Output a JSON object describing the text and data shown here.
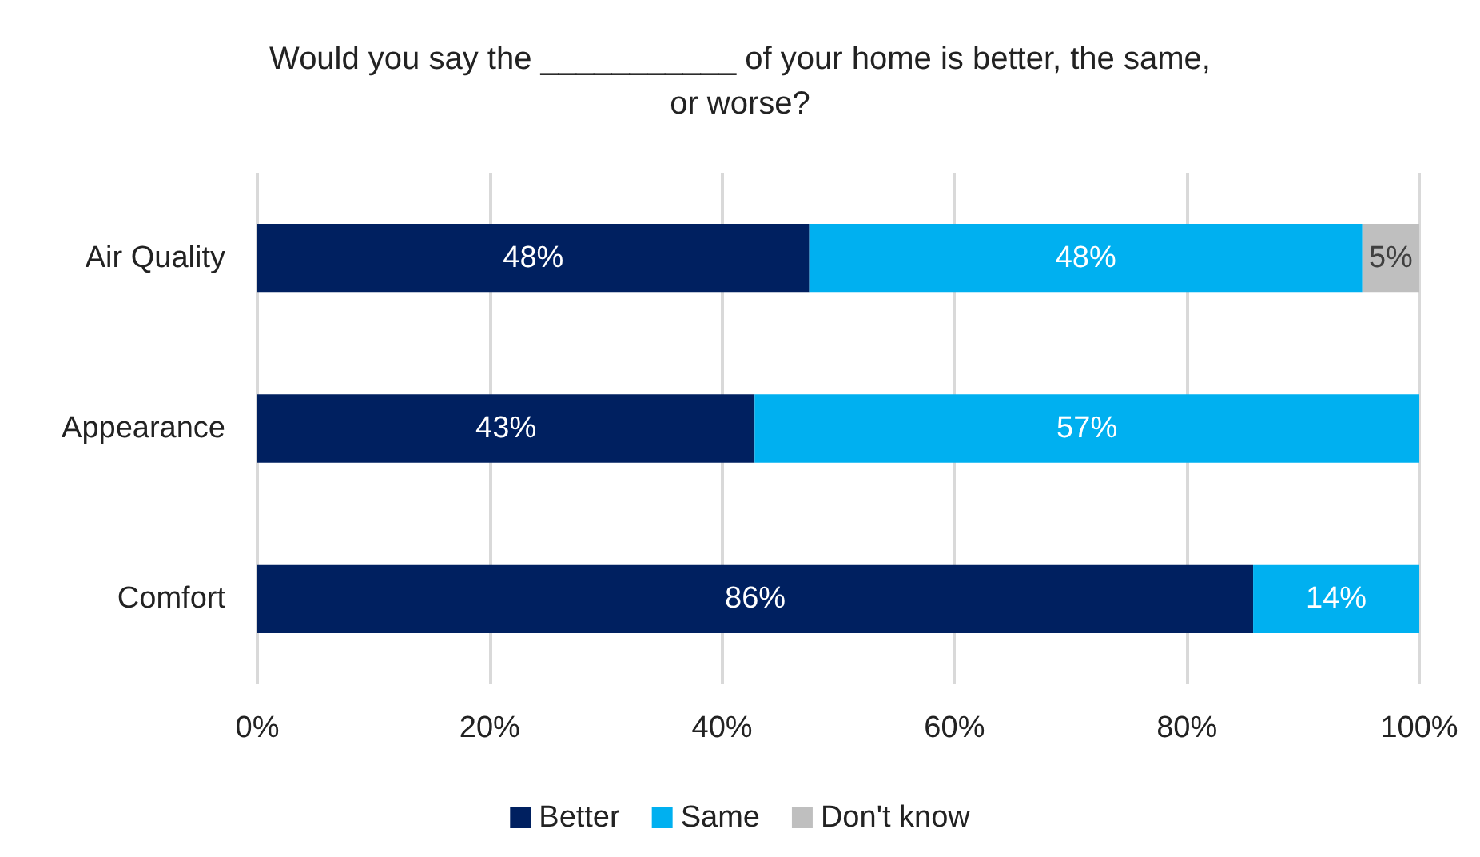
{
  "chart_data": {
    "type": "bar",
    "orientation": "horizontal",
    "stacked": true,
    "title": "Would you say the ___________ of your home is better, the same,\nor worse?",
    "categories": [
      "Air Quality",
      "Appearance",
      "Comfort"
    ],
    "series": [
      {
        "name": "Better",
        "color": "#002060",
        "values": [
          47.5,
          42.8,
          85.7
        ],
        "value_labels": [
          "48%",
          "43%",
          "86%"
        ]
      },
      {
        "name": "Same",
        "color": "#00b0f0",
        "values": [
          47.6,
          57.2,
          14.3
        ],
        "value_labels": [
          "48%",
          "57%",
          "14%"
        ]
      },
      {
        "name": "Don't know",
        "color": "#bfbfbf",
        "values": [
          4.9,
          null,
          null
        ],
        "value_labels": [
          "5%",
          null,
          null
        ]
      }
    ],
    "xlim": [
      0,
      100
    ],
    "xticks": [
      {
        "value": 0,
        "label": "0%"
      },
      {
        "value": 20,
        "label": "20%"
      },
      {
        "value": 40,
        "label": "40%"
      },
      {
        "value": 60,
        "label": "60%"
      },
      {
        "value": 80,
        "label": "80%"
      },
      {
        "value": 100,
        "label": "100%"
      }
    ],
    "grid": "x",
    "legend": "bottom"
  }
}
